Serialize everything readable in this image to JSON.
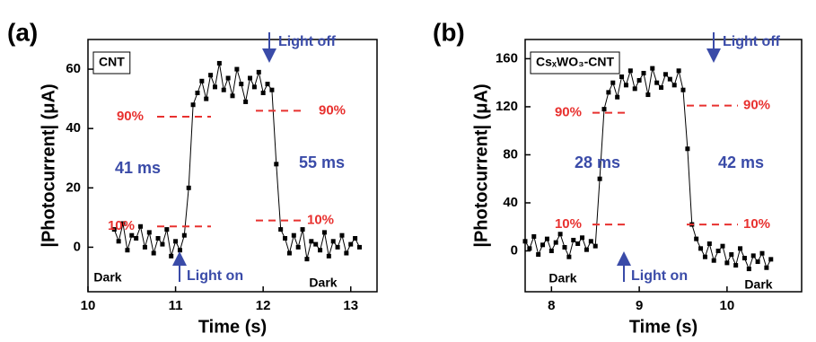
{
  "chart_data": [
    {
      "type": "scatter-line",
      "panel_label": "(a)",
      "legend_label": "CNT",
      "x_label": "Time (s)",
      "y_label": "|Photocurrent| (μA)",
      "xlim": [
        10,
        13.3
      ],
      "ylim": [
        -15,
        70
      ],
      "xticks": [
        10,
        11,
        12,
        13
      ],
      "yticks": [
        0,
        20,
        40,
        60
      ],
      "color": "#000000",
      "level_color": "#e8312f",
      "note_color": "#3a4ba8",
      "x": [
        10.3,
        10.35,
        10.4,
        10.45,
        10.5,
        10.55,
        10.6,
        10.65,
        10.7,
        10.75,
        10.8,
        10.85,
        10.9,
        10.95,
        11.0,
        11.05,
        11.1,
        11.15,
        11.2,
        11.25,
        11.3,
        11.35,
        11.4,
        11.45,
        11.5,
        11.55,
        11.6,
        11.65,
        11.7,
        11.75,
        11.8,
        11.85,
        11.9,
        11.95,
        12.0,
        12.05,
        12.1,
        12.15,
        12.2,
        12.25,
        12.3,
        12.35,
        12.4,
        12.45,
        12.5,
        12.55,
        12.6,
        12.65,
        12.7,
        12.75,
        12.8,
        12.85,
        12.9,
        12.95,
        13.0,
        13.05,
        13.1
      ],
      "values": [
        6,
        2,
        8,
        -1,
        4,
        3,
        7,
        0,
        5,
        -2,
        3,
        1,
        6,
        -3,
        2,
        -1,
        4,
        20,
        48,
        52,
        56,
        50,
        58,
        54,
        62,
        53,
        57,
        51,
        60,
        55,
        49,
        57,
        54,
        59,
        52,
        55,
        53,
        28,
        6,
        3,
        -2,
        4,
        0,
        6,
        -4,
        2,
        1,
        -1,
        5,
        -3,
        2,
        0,
        4,
        -2,
        1,
        3,
        0
      ],
      "rise_time": "41 ms",
      "fall_time": "55 ms",
      "rise_levels": [
        {
          "label": "90%",
          "value": 44
        },
        {
          "label": "10%",
          "value": 7
        }
      ],
      "fall_levels": [
        {
          "label": "90%",
          "value": 46
        },
        {
          "label": "10%",
          "value": 9
        }
      ],
      "on_label": "Light on",
      "off_label": "Light off",
      "dark_labels": [
        "Dark",
        "Dark"
      ]
    },
    {
      "type": "scatter-line",
      "panel_label": "(b)",
      "legend_label": "CsₓWO₃-CNT",
      "x_label": "Time (s)",
      "y_label": "|Photocurrent| (μA)",
      "xlim": [
        7.7,
        10.85
      ],
      "ylim": [
        -34,
        176
      ],
      "xticks": [
        8,
        9,
        10
      ],
      "yticks": [
        0,
        40,
        80,
        120,
        160
      ],
      "color": "#000000",
      "level_color": "#e8312f",
      "note_color": "#3a4ba8",
      "x": [
        7.7,
        7.75,
        7.8,
        7.85,
        7.9,
        7.95,
        8.0,
        8.05,
        8.1,
        8.15,
        8.2,
        8.25,
        8.3,
        8.35,
        8.4,
        8.45,
        8.5,
        8.55,
        8.6,
        8.65,
        8.7,
        8.75,
        8.8,
        8.85,
        8.9,
        8.95,
        9.0,
        9.05,
        9.1,
        9.15,
        9.2,
        9.25,
        9.3,
        9.35,
        9.4,
        9.45,
        9.5,
        9.55,
        9.6,
        9.65,
        9.7,
        9.75,
        9.8,
        9.85,
        9.9,
        9.95,
        10.0,
        10.05,
        10.1,
        10.15,
        10.2,
        10.25,
        10.3,
        10.35,
        10.4,
        10.45,
        10.5
      ],
      "values": [
        8,
        2,
        12,
        -3,
        5,
        10,
        0,
        7,
        14,
        3,
        -5,
        9,
        6,
        11,
        1,
        8,
        4,
        60,
        118,
        132,
        140,
        128,
        145,
        138,
        150,
        135,
        142,
        148,
        130,
        152,
        140,
        136,
        147,
        143,
        138,
        150,
        134,
        85,
        22,
        10,
        2,
        -5,
        6,
        -8,
        0,
        4,
        -10,
        -3,
        -12,
        2,
        -6,
        -15,
        -4,
        -9,
        -2,
        -14,
        -7
      ],
      "rise_time": "28 ms",
      "fall_time": "42 ms",
      "rise_levels": [
        {
          "label": "90%",
          "value": 115
        },
        {
          "label": "10%",
          "value": 22
        }
      ],
      "fall_levels": [
        {
          "label": "90%",
          "value": 121
        },
        {
          "label": "10%",
          "value": 22
        }
      ],
      "on_label": "Light on",
      "off_label": "Light off",
      "dark_labels": [
        "Dark",
        "Dark"
      ]
    }
  ]
}
